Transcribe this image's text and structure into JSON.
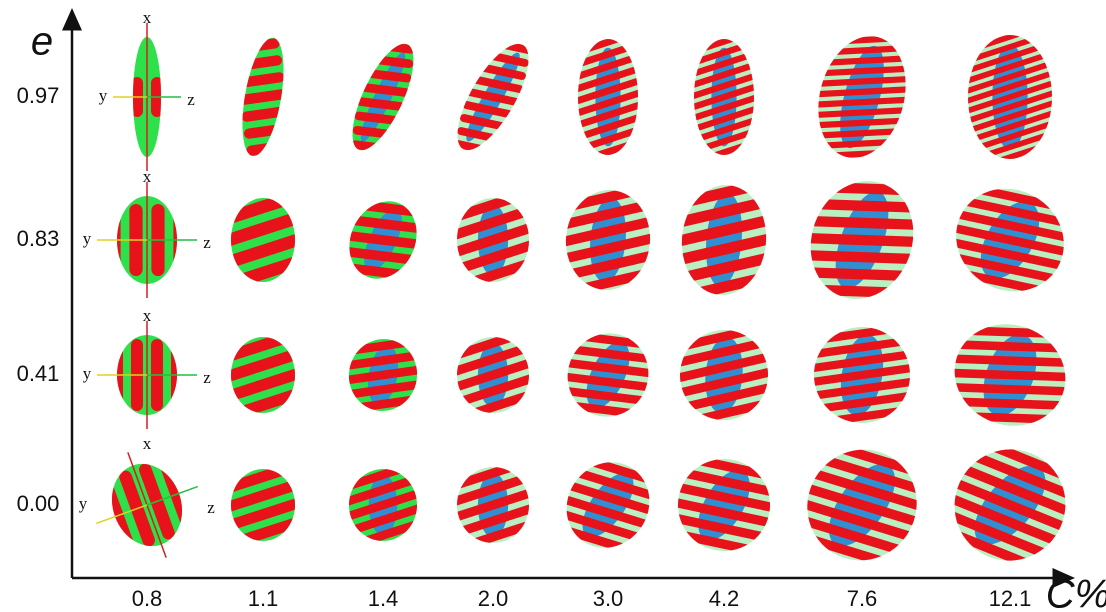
{
  "figure": {
    "y_axis_label": "e",
    "x_axis_label": "C%",
    "rows": [
      "0.97",
      "0.83",
      "0.41",
      "0.00"
    ],
    "columns": [
      "0.8",
      "1.1",
      "1.4",
      "2.0",
      "3.0",
      "4.2",
      "7.6",
      "12.1"
    ],
    "orientation_labels": {
      "x": "x",
      "y": "y",
      "z": "z"
    }
  }
}
